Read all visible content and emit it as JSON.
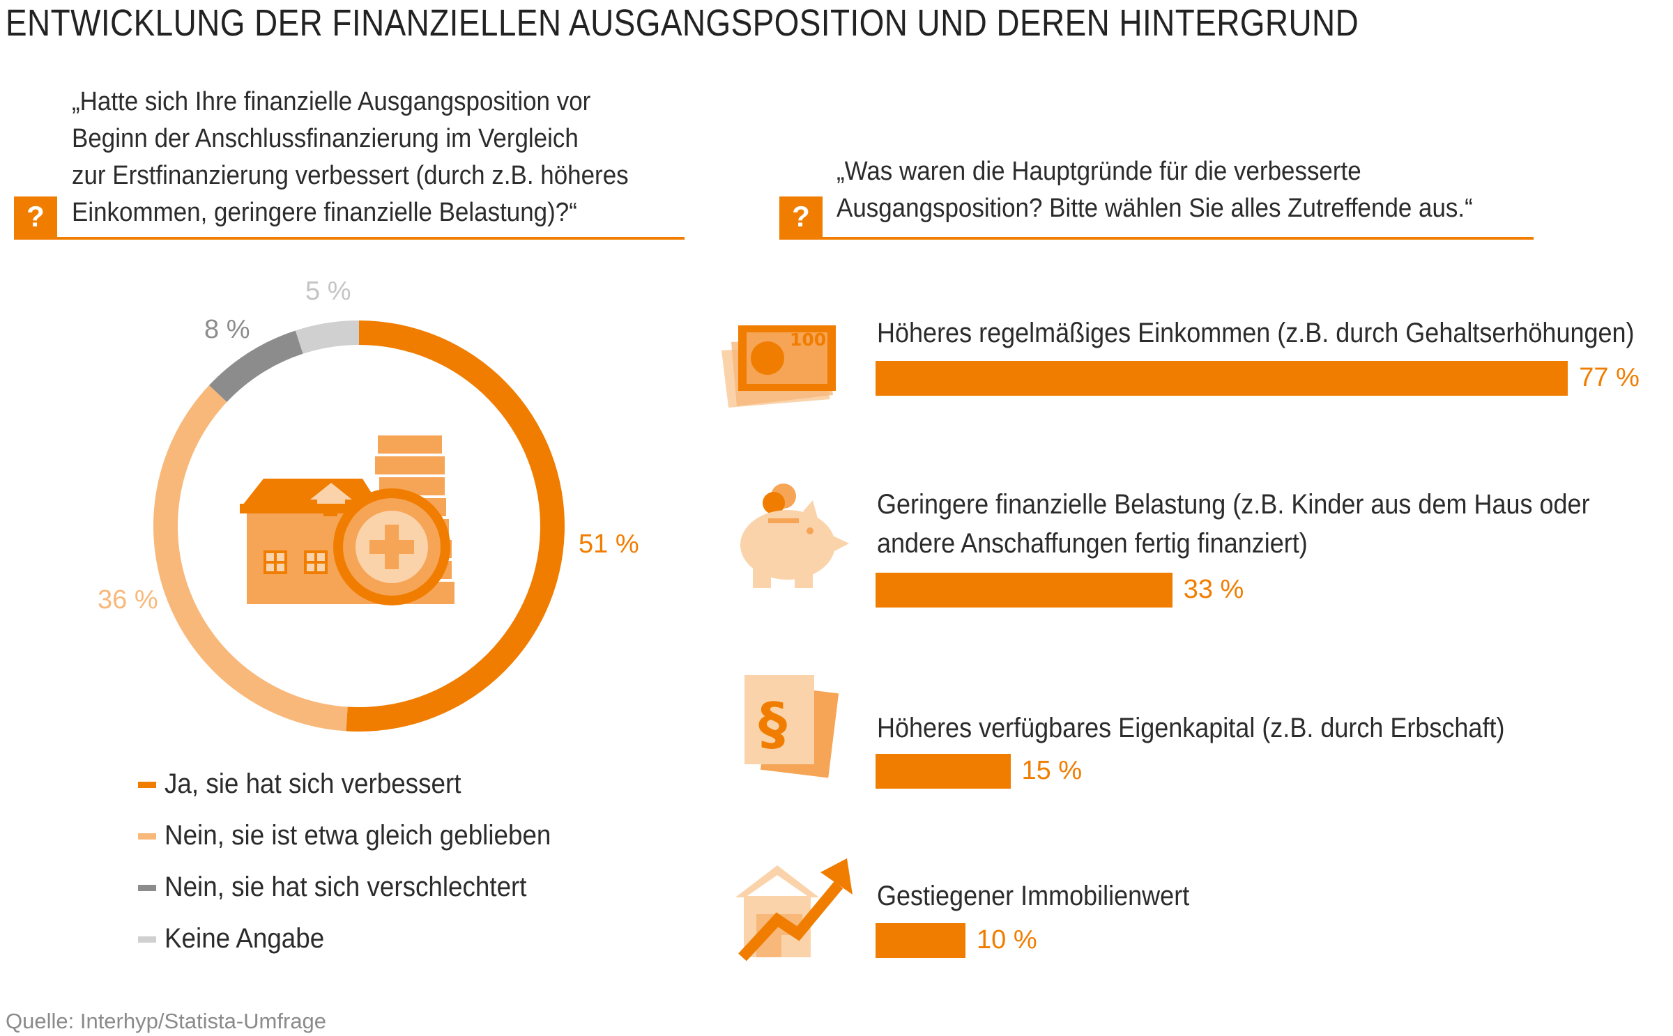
{
  "title": "ENTWICKLUNG DER FINANZIELLEN AUSGANGSPOSITION UND DEREN HINTERGRUND",
  "question_left": {
    "marker": "?",
    "lines": [
      "„Hatte sich Ihre finanzielle Ausgangsposition vor",
      "Beginn der Anschlussfinanzierung im Vergleich",
      "zur Erstfinanzierung verbessert (durch z.B. höheres",
      "Einkommen, geringere finanzielle Belastung)?“"
    ]
  },
  "question_right": {
    "marker": "?",
    "lines": [
      "„Was waren die Hauptgründe für die verbesserte",
      "Ausgangsposition? Bitte wählen Sie alles Zutreffende aus.“"
    ]
  },
  "chart_data": [
    {
      "type": "pie",
      "variant": "donut",
      "labels": [
        "Ja, sie hat sich verbessert",
        "Nein, sie ist etwa gleich geblieben",
        "Nein, sie hat sich verschlechtert",
        "Keine Angabe"
      ],
      "values": [
        51,
        36,
        8,
        5
      ],
      "value_labels": [
        "51 %",
        "36 %",
        "8 %",
        "5 %"
      ],
      "colors": [
        "#f07d00",
        "#f8b87a",
        "#8c8c8c",
        "#d0d0d0"
      ],
      "label_colors": [
        "#f07d00",
        "#f8b87a",
        "#8c8c8c",
        "#c4c4c4"
      ],
      "legend_position": "bottom"
    },
    {
      "type": "bar",
      "orientation": "horizontal",
      "categories": [
        "Höheres regelmäßiges Einkommen (z.B. durch Gehaltserhöhungen)",
        "Geringere finanzielle Belastung (z.B. Kinder aus dem Haus oder",
        "Höheres verfügbares Eigenkapital (z.B. durch Erbschaft)",
        "Gestiegener Immobilienwert"
      ],
      "category_second_lines": [
        "",
        "andere Anschaffungen fertig finanziert)",
        "",
        ""
      ],
      "values": [
        77,
        33,
        15,
        10
      ],
      "value_labels": [
        "77 %",
        "33 %",
        "15 %",
        "10 %"
      ],
      "icons": [
        "banknote-icon",
        "piggy-bank-icon",
        "paragraph-document-icon",
        "house-rising-value-icon"
      ],
      "xlim": [
        0,
        100
      ],
      "color": "#f07d00"
    }
  ],
  "colors": {
    "accent": "#f07d00",
    "light": "#f8b87a",
    "pale": "#fbd3aa"
  },
  "banknote_text": "100",
  "paragraph_symbol": "§",
  "source": "Quelle: Interhyp/Statista-Umfrage"
}
